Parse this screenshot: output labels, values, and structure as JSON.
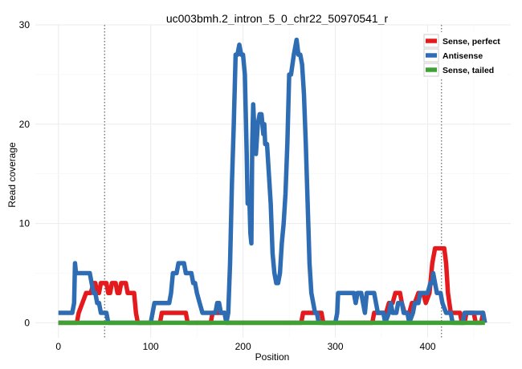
{
  "chart_data": {
    "type": "line",
    "title": "uc003bmh.2_intron_5_0_chr22_50970541_r",
    "xlabel": "Position",
    "ylabel": "Read coverage",
    "xlim": [
      -25,
      490
    ],
    "ylim": [
      -1.5,
      30
    ],
    "x_ticks": [
      0,
      100,
      200,
      300,
      400
    ],
    "y_ticks": [
      0,
      10,
      20,
      30
    ],
    "grid": true,
    "legend_position": "top-right",
    "vlines": [
      50,
      415
    ],
    "series": [
      {
        "name": "Sense, perfect",
        "color": "#e41a1c",
        "points": [
          [
            0,
            0
          ],
          [
            20,
            0
          ],
          [
            22,
            1
          ],
          [
            26,
            2
          ],
          [
            30,
            3
          ],
          [
            35,
            3
          ],
          [
            38,
            4
          ],
          [
            40,
            4
          ],
          [
            42,
            3
          ],
          [
            44,
            3
          ],
          [
            46,
            4
          ],
          [
            52,
            4
          ],
          [
            54,
            3
          ],
          [
            56,
            3
          ],
          [
            58,
            4
          ],
          [
            62,
            4
          ],
          [
            64,
            3
          ],
          [
            66,
            3
          ],
          [
            68,
            4
          ],
          [
            73,
            4
          ],
          [
            75,
            3
          ],
          [
            82,
            3
          ],
          [
            84,
            1
          ],
          [
            86,
            0
          ],
          [
            110,
            0
          ],
          [
            112,
            1
          ],
          [
            138,
            1
          ],
          [
            140,
            0
          ],
          [
            165,
            0
          ],
          [
            167,
            1
          ],
          [
            180,
            1
          ],
          [
            182,
            0
          ],
          [
            263,
            0
          ],
          [
            265,
            1
          ],
          [
            285,
            1
          ],
          [
            287,
            0
          ],
          [
            340,
            0
          ],
          [
            342,
            1
          ],
          [
            355,
            1
          ],
          [
            358,
            2
          ],
          [
            362,
            2
          ],
          [
            365,
            3
          ],
          [
            370,
            3
          ],
          [
            372,
            2
          ],
          [
            375,
            1
          ],
          [
            380,
            1
          ],
          [
            383,
            2
          ],
          [
            386,
            2
          ],
          [
            390,
            3
          ],
          [
            395,
            3
          ],
          [
            398,
            2
          ],
          [
            402,
            3
          ],
          [
            405,
            6
          ],
          [
            408,
            7.5
          ],
          [
            418,
            7.5
          ],
          [
            420,
            6
          ],
          [
            422,
            3
          ],
          [
            425,
            1
          ],
          [
            435,
            1
          ],
          [
            437,
            0
          ],
          [
            440,
            0
          ],
          [
            442,
            1
          ],
          [
            450,
            1
          ],
          [
            452,
            0
          ],
          [
            458,
            0
          ],
          [
            460,
            1
          ],
          [
            462,
            0
          ]
        ]
      },
      {
        "name": "Antisense",
        "color": "#2e6db4",
        "points": [
          [
            0,
            1
          ],
          [
            15,
            1
          ],
          [
            17,
            2
          ],
          [
            18,
            6
          ],
          [
            19,
            5
          ],
          [
            25,
            5
          ],
          [
            30,
            5
          ],
          [
            34,
            5
          ],
          [
            36,
            4
          ],
          [
            38,
            3
          ],
          [
            40,
            3
          ],
          [
            42,
            2
          ],
          [
            44,
            2
          ],
          [
            46,
            1
          ],
          [
            52,
            1
          ],
          [
            54,
            0
          ],
          [
            100,
            0
          ],
          [
            102,
            1
          ],
          [
            104,
            2
          ],
          [
            120,
            2
          ],
          [
            122,
            3
          ],
          [
            124,
            5
          ],
          [
            128,
            5
          ],
          [
            130,
            6
          ],
          [
            136,
            6
          ],
          [
            138,
            5
          ],
          [
            142,
            5
          ],
          [
            144,
            5
          ],
          [
            146,
            4
          ],
          [
            148,
            4
          ],
          [
            150,
            3
          ],
          [
            153,
            2
          ],
          [
            156,
            1
          ],
          [
            160,
            1
          ],
          [
            170,
            1
          ],
          [
            172,
            2
          ],
          [
            174,
            2
          ],
          [
            176,
            1
          ],
          [
            180,
            1
          ],
          [
            182,
            0
          ],
          [
            184,
            1
          ],
          [
            186,
            6
          ],
          [
            188,
            14
          ],
          [
            190,
            20
          ],
          [
            192,
            27
          ],
          [
            194,
            27
          ],
          [
            196,
            28
          ],
          [
            198,
            27
          ],
          [
            200,
            27
          ],
          [
            202,
            25
          ],
          [
            204,
            17
          ],
          [
            205,
            12
          ],
          [
            206,
            13
          ],
          [
            207,
            12
          ],
          [
            208,
            9
          ],
          [
            209,
            8
          ],
          [
            210,
            18
          ],
          [
            211,
            22
          ],
          [
            212,
            20
          ],
          [
            214,
            17
          ],
          [
            216,
            20
          ],
          [
            218,
            21
          ],
          [
            220,
            21
          ],
          [
            222,
            19
          ],
          [
            223,
            20
          ],
          [
            224,
            18
          ],
          [
            226,
            18
          ],
          [
            228,
            15
          ],
          [
            230,
            12
          ],
          [
            232,
            7
          ],
          [
            234,
            5
          ],
          [
            236,
            4
          ],
          [
            238,
            4
          ],
          [
            240,
            5
          ],
          [
            242,
            8
          ],
          [
            244,
            10
          ],
          [
            246,
            13
          ],
          [
            248,
            18
          ],
          [
            250,
            25
          ],
          [
            252,
            25
          ],
          [
            255,
            27
          ],
          [
            257,
            28
          ],
          [
            258,
            28.5
          ],
          [
            260,
            27
          ],
          [
            262,
            27
          ],
          [
            264,
            26
          ],
          [
            266,
            23
          ],
          [
            268,
            18
          ],
          [
            270,
            12
          ],
          [
            272,
            6
          ],
          [
            274,
            3
          ],
          [
            278,
            1
          ],
          [
            280,
            1
          ],
          [
            282,
            0
          ],
          [
            300,
            0
          ],
          [
            302,
            1
          ],
          [
            303,
            3
          ],
          [
            320,
            3
          ],
          [
            322,
            2
          ],
          [
            324,
            3
          ],
          [
            328,
            3
          ],
          [
            330,
            2
          ],
          [
            332,
            1
          ],
          [
            334,
            3
          ],
          [
            342,
            3
          ],
          [
            344,
            2
          ],
          [
            346,
            1
          ],
          [
            352,
            1
          ],
          [
            354,
            0
          ],
          [
            358,
            1
          ],
          [
            360,
            2
          ],
          [
            362,
            1
          ],
          [
            366,
            1
          ],
          [
            368,
            2
          ],
          [
            372,
            2
          ],
          [
            374,
            1
          ],
          [
            378,
            1
          ],
          [
            380,
            0
          ],
          [
            384,
            1
          ],
          [
            386,
            2
          ],
          [
            390,
            2
          ],
          [
            392,
            3
          ],
          [
            400,
            3
          ],
          [
            403,
            4
          ],
          [
            405,
            4
          ],
          [
            406,
            5
          ],
          [
            408,
            4
          ],
          [
            410,
            3
          ],
          [
            414,
            3
          ],
          [
            416,
            2
          ],
          [
            420,
            1
          ],
          [
            425,
            1
          ],
          [
            427,
            0
          ],
          [
            438,
            0
          ],
          [
            440,
            1
          ],
          [
            460,
            1
          ],
          [
            462,
            0
          ]
        ]
      },
      {
        "name": "Sense, tailed",
        "color": "#3fa036",
        "points": [
          [
            0,
            0
          ],
          [
            462,
            0
          ]
        ]
      }
    ]
  }
}
